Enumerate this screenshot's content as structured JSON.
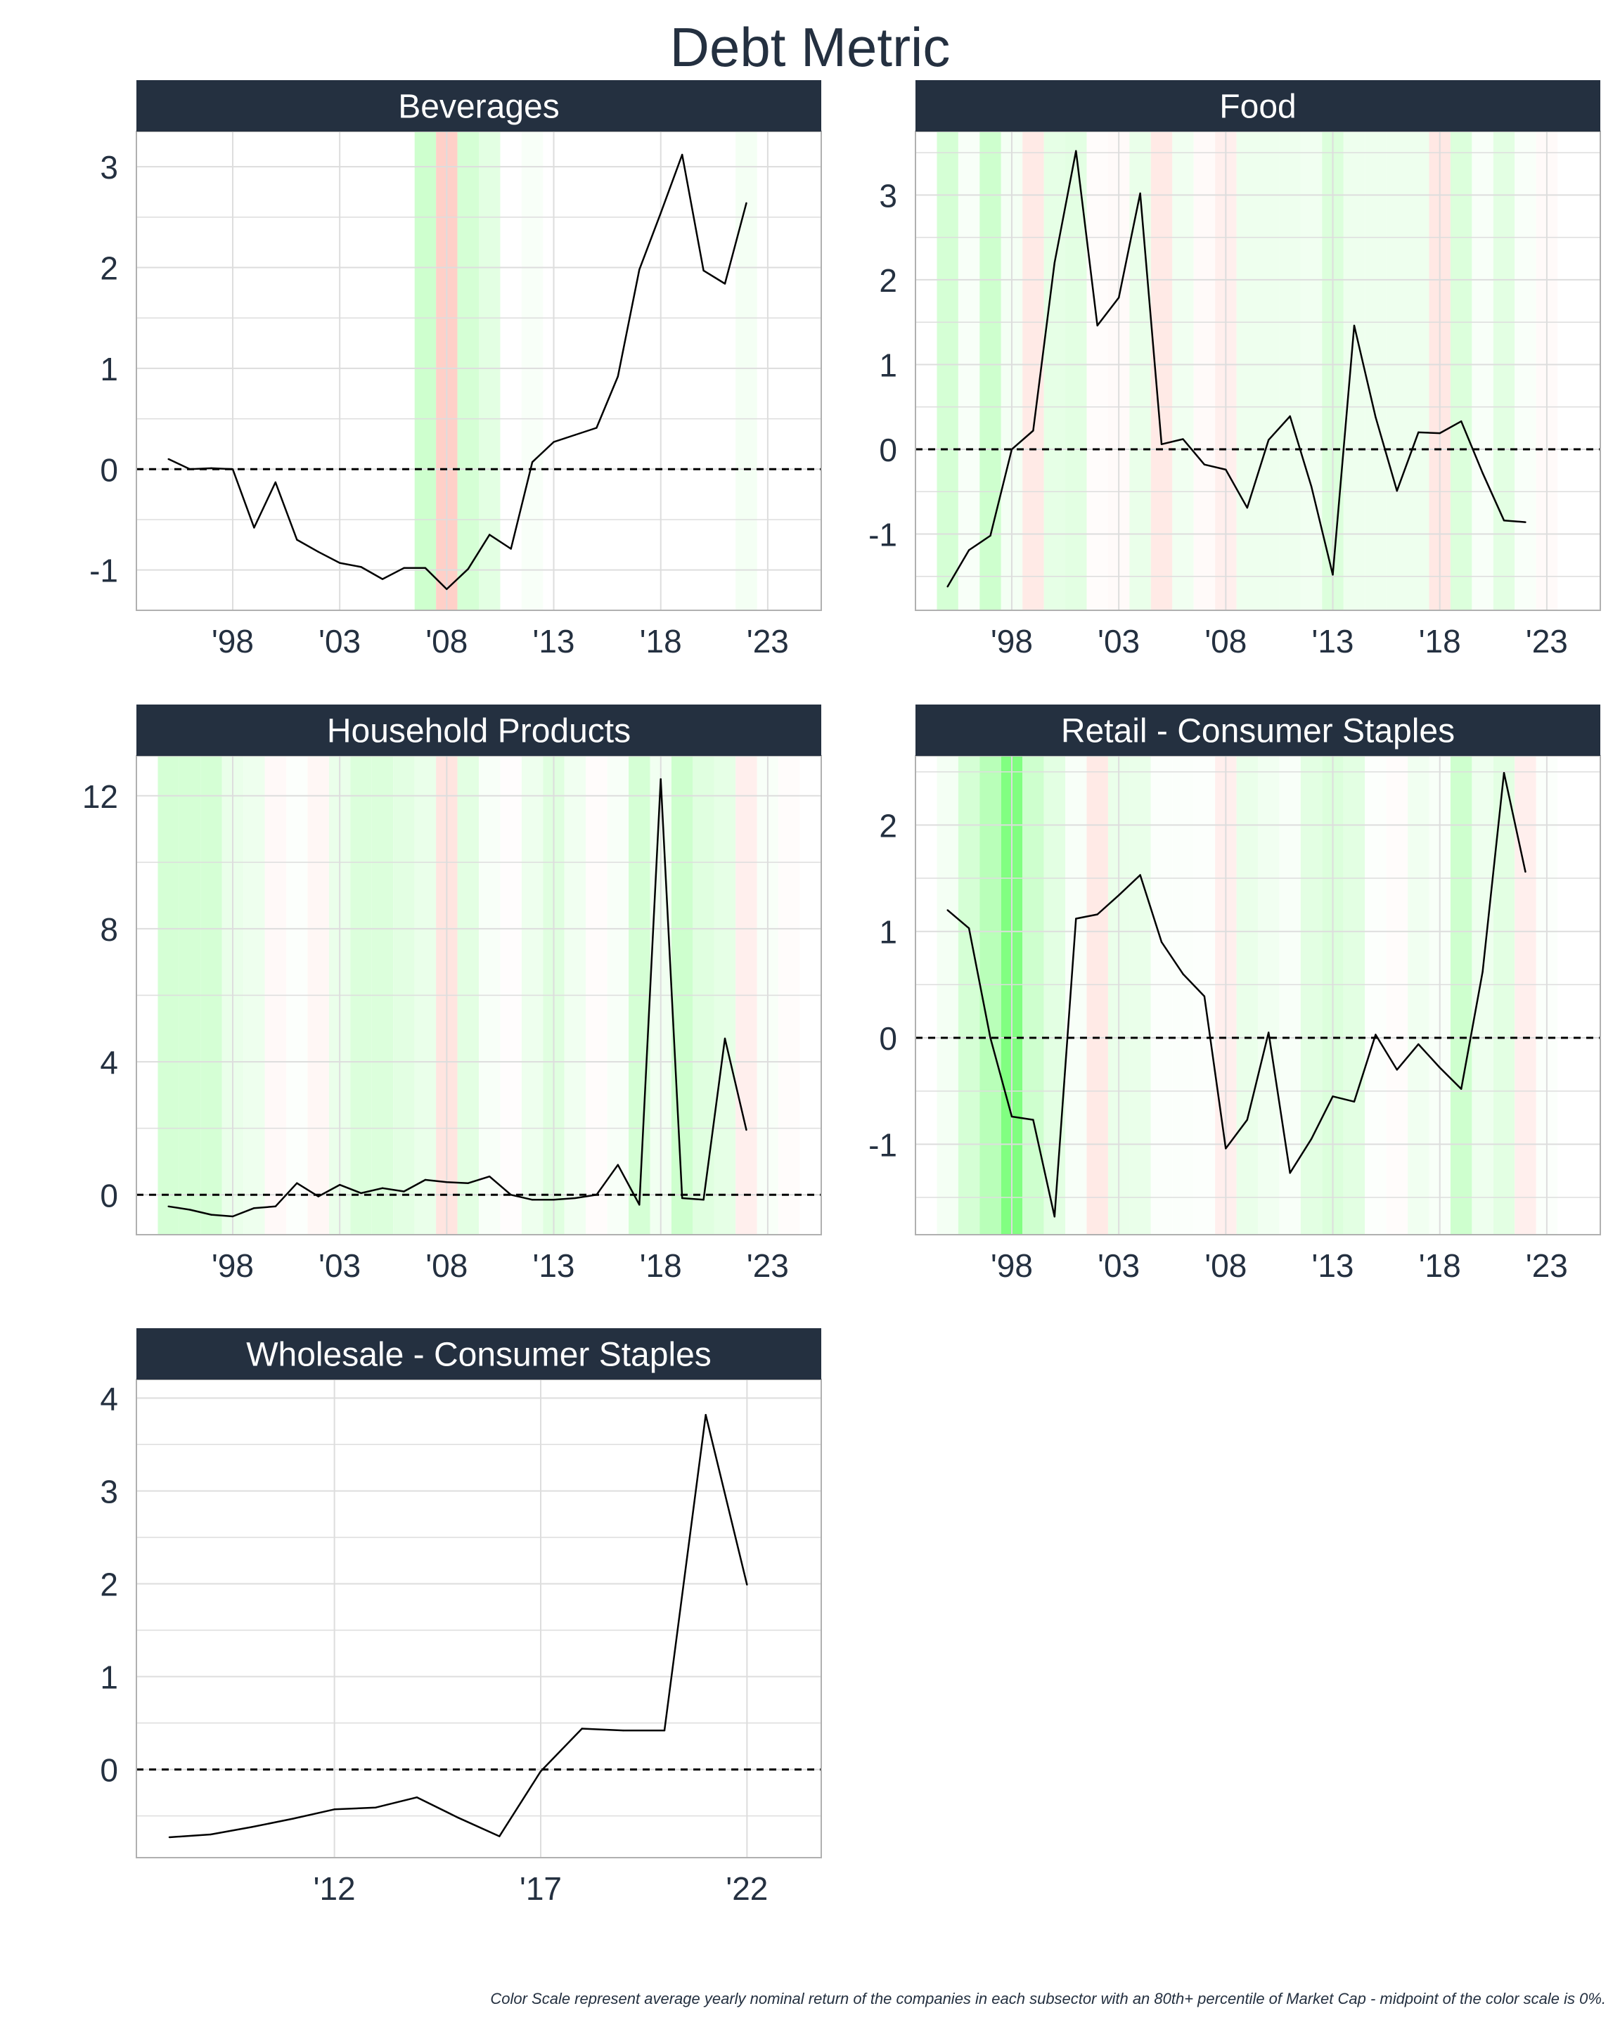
{
  "title": "Debt Metric",
  "footnote": "Color Scale represent average yearly nominal return of the companies in each subsector with an 80th+ percentile of Market Cap - midpoint of the color scale is 0%.",
  "colors": {
    "header_bg": "#243040",
    "header_text": "#ffffff",
    "line": "#000000",
    "grid": "#dddddd",
    "positive_return": "#00ff00",
    "negative_return": "#ff4020"
  },
  "chart_data": [
    {
      "type": "line",
      "title": "Beverages",
      "xlim": [
        1993.5,
        2025.5
      ],
      "ylim": [
        -1.4,
        3.35
      ],
      "xticks": [
        1998,
        2003,
        2008,
        2013,
        2018,
        2023
      ],
      "xtick_labels": [
        "'98",
        "'03",
        "'08",
        "'13",
        "'18",
        "'23"
      ],
      "yticks": [
        -1,
        0,
        1,
        2,
        3
      ],
      "ytick_labels": [
        "-1",
        "0",
        "1",
        "2",
        "3"
      ],
      "reference_line": 0,
      "grid": true,
      "x": [
        1995,
        1996,
        1997,
        1998,
        1999,
        2000,
        2001,
        2002,
        2003,
        2004,
        2005,
        2006,
        2007,
        2008,
        2009,
        2010,
        2011,
        2012,
        2013,
        2014,
        2015,
        2016,
        2017,
        2018,
        2019,
        2020,
        2021,
        2022
      ],
      "y": [
        0.1,
        0.0,
        0.01,
        0.0,
        -0.58,
        -0.13,
        -0.7,
        -0.82,
        -0.93,
        -0.97,
        -1.09,
        -0.98,
        -0.98,
        -1.19,
        -0.99,
        -0.65,
        -0.79,
        0.07,
        0.27,
        0.34,
        0.41,
        0.92,
        1.98,
        2.54,
        3.12,
        1.97,
        1.84,
        2.64
      ],
      "return_bands": [
        {
          "year": 2007,
          "value": 0.35
        },
        {
          "year": 2008,
          "value": -0.45
        },
        {
          "year": 2009,
          "value": 0.3
        },
        {
          "year": 2010,
          "value": 0.2
        },
        {
          "year": 2012,
          "value": 0.05
        },
        {
          "year": 2022,
          "value": 0.08
        }
      ]
    },
    {
      "type": "line",
      "title": "Food",
      "xlim": [
        1993.5,
        2025.5
      ],
      "ylim": [
        -1.9,
        3.75
      ],
      "xticks": [
        1998,
        2003,
        2008,
        2013,
        2018,
        2023
      ],
      "xtick_labels": [
        "'98",
        "'03",
        "'08",
        "'13",
        "'18",
        "'23"
      ],
      "yticks": [
        -1,
        0,
        1,
        2,
        3
      ],
      "ytick_labels": [
        "-1",
        "0",
        "1",
        "2",
        "3"
      ],
      "reference_line": 0,
      "grid": true,
      "x": [
        1995,
        1996,
        1997,
        1998,
        1999,
        2000,
        2001,
        2002,
        2003,
        2004,
        2005,
        2006,
        2007,
        2008,
        2009,
        2010,
        2011,
        2012,
        2013,
        2014,
        2015,
        2016,
        2017,
        2018,
        2019,
        2020,
        2021,
        2022
      ],
      "y": [
        -1.62,
        -1.19,
        -1.02,
        0.0,
        0.22,
        2.2,
        3.52,
        1.46,
        1.79,
        3.02,
        0.06,
        0.12,
        -0.18,
        -0.24,
        -0.69,
        0.11,
        0.39,
        -0.44,
        -1.48,
        1.46,
        0.38,
        -0.49,
        0.2,
        0.19,
        0.33,
        -0.28,
        -0.84,
        -0.86
      ],
      "return_bands": [
        {
          "year": 1995,
          "value": 0.3
        },
        {
          "year": 1996,
          "value": 0.05
        },
        {
          "year": 1997,
          "value": 0.35
        },
        {
          "year": 1998,
          "value": 0.08
        },
        {
          "year": 1999,
          "value": -0.2
        },
        {
          "year": 2000,
          "value": 0.18
        },
        {
          "year": 2001,
          "value": 0.2
        },
        {
          "year": 2002,
          "value": -0.03
        },
        {
          "year": 2003,
          "value": -0.05
        },
        {
          "year": 2004,
          "value": 0.15
        },
        {
          "year": 2005,
          "value": -0.2
        },
        {
          "year": 2006,
          "value": 0.1
        },
        {
          "year": 2007,
          "value": -0.05
        },
        {
          "year": 2008,
          "value": -0.15
        },
        {
          "year": 2009,
          "value": 0.12
        },
        {
          "year": 2010,
          "value": 0.12
        },
        {
          "year": 2011,
          "value": 0.12
        },
        {
          "year": 2012,
          "value": 0.1
        },
        {
          "year": 2013,
          "value": 0.25
        },
        {
          "year": 2014,
          "value": 0.12
        },
        {
          "year": 2015,
          "value": 0.12
        },
        {
          "year": 2016,
          "value": 0.12
        },
        {
          "year": 2017,
          "value": 0.12
        },
        {
          "year": 2018,
          "value": -0.22
        },
        {
          "year": 2019,
          "value": 0.25
        },
        {
          "year": 2020,
          "value": 0.05
        },
        {
          "year": 2021,
          "value": 0.2
        },
        {
          "year": 2022,
          "value": 0.04
        },
        {
          "year": 2023,
          "value": -0.05
        }
      ]
    },
    {
      "type": "line",
      "title": "Household Products",
      "xlim": [
        1993.5,
        2025.5
      ],
      "ylim": [
        -1.2,
        13.2
      ],
      "xticks": [
        1998,
        2003,
        2008,
        2013,
        2018,
        2023
      ],
      "xtick_labels": [
        "'98",
        "'03",
        "'08",
        "'13",
        "'18",
        "'23"
      ],
      "yticks": [
        0,
        4,
        8,
        12
      ],
      "ytick_labels": [
        "0",
        "4",
        "8",
        "12"
      ],
      "reference_line": 0,
      "grid": true,
      "x": [
        1995,
        1996,
        1997,
        1998,
        1999,
        2000,
        2001,
        2002,
        2003,
        2004,
        2005,
        2006,
        2007,
        2008,
        2009,
        2010,
        2011,
        2012,
        2013,
        2014,
        2015,
        2016,
        2017,
        2018,
        2019,
        2020,
        2021,
        2022
      ],
      "y": [
        -0.35,
        -0.45,
        -0.6,
        -0.65,
        -0.4,
        -0.35,
        0.35,
        -0.05,
        0.3,
        0.05,
        0.2,
        0.1,
        0.45,
        0.38,
        0.35,
        0.55,
        0.0,
        -0.15,
        -0.15,
        -0.1,
        0.0,
        0.9,
        -0.3,
        12.5,
        -0.1,
        -0.15,
        4.7,
        1.95
      ],
      "return_bands": [
        {
          "year": 1995,
          "value": 0.3
        },
        {
          "year": 1996,
          "value": 0.3
        },
        {
          "year": 1997,
          "value": 0.3
        },
        {
          "year": 1998,
          "value": 0.15
        },
        {
          "year": 1999,
          "value": 0.12
        },
        {
          "year": 2000,
          "value": -0.06
        },
        {
          "year": 2001,
          "value": 0.02
        },
        {
          "year": 2002,
          "value": -0.08
        },
        {
          "year": 2003,
          "value": 0.15
        },
        {
          "year": 2004,
          "value": 0.25
        },
        {
          "year": 2005,
          "value": 0.25
        },
        {
          "year": 2006,
          "value": 0.2
        },
        {
          "year": 2007,
          "value": 0.15
        },
        {
          "year": 2008,
          "value": -0.25
        },
        {
          "year": 2009,
          "value": 0.2
        },
        {
          "year": 2010,
          "value": 0.05
        },
        {
          "year": 2011,
          "value": -0.02
        },
        {
          "year": 2012,
          "value": 0.12
        },
        {
          "year": 2013,
          "value": 0.22
        },
        {
          "year": 2014,
          "value": 0.1
        },
        {
          "year": 2015,
          "value": -0.03
        },
        {
          "year": 2016,
          "value": 0.05
        },
        {
          "year": 2017,
          "value": 0.3
        },
        {
          "year": 2018,
          "value": 0.1
        },
        {
          "year": 2019,
          "value": 0.35
        },
        {
          "year": 2020,
          "value": 0.22
        },
        {
          "year": 2021,
          "value": 0.18
        },
        {
          "year": 2022,
          "value": -0.15
        },
        {
          "year": 2023,
          "value": 0.05
        },
        {
          "year": 2024,
          "value": -0.03
        }
      ]
    },
    {
      "type": "line",
      "title": "Retail - Consumer Staples",
      "xlim": [
        1993.5,
        2025.5
      ],
      "ylim": [
        -1.85,
        2.65
      ],
      "xticks": [
        1998,
        2003,
        2008,
        2013,
        2018,
        2023
      ],
      "xtick_labels": [
        "'98",
        "'03",
        "'08",
        "'13",
        "'18",
        "'23"
      ],
      "yticks": [
        -1,
        0,
        1,
        2
      ],
      "ytick_labels": [
        "-1",
        "0",
        "1",
        "2"
      ],
      "reference_line": 0,
      "grid": true,
      "x": [
        1995,
        1996,
        1997,
        1998,
        1999,
        2000,
        2001,
        2002,
        2003,
        2004,
        2005,
        2006,
        2007,
        2008,
        2009,
        2010,
        2011,
        2012,
        2013,
        2014,
        2015,
        2016,
        2017,
        2018,
        2019,
        2020,
        2021,
        2022
      ],
      "y": [
        1.2,
        1.03,
        0.0,
        -0.74,
        -0.77,
        -1.68,
        1.12,
        1.16,
        1.34,
        1.53,
        0.9,
        0.6,
        0.39,
        -1.04,
        -0.77,
        0.05,
        -1.27,
        -0.95,
        -0.55,
        -0.6,
        0.03,
        -0.3,
        -0.06,
        -0.28,
        -0.48,
        0.62,
        2.49,
        1.56
      ],
      "return_bands": [
        {
          "year": 1995,
          "value": 0.08
        },
        {
          "year": 1996,
          "value": 0.3
        },
        {
          "year": 1997,
          "value": 0.5
        },
        {
          "year": 1998,
          "value": 0.9
        },
        {
          "year": 1999,
          "value": 0.35
        },
        {
          "year": 2000,
          "value": 0.2
        },
        {
          "year": 2001,
          "value": 0.05
        },
        {
          "year": 2002,
          "value": -0.2
        },
        {
          "year": 2003,
          "value": 0.15
        },
        {
          "year": 2004,
          "value": 0.15
        },
        {
          "year": 2005,
          "value": 0.03
        },
        {
          "year": 2006,
          "value": 0.03
        },
        {
          "year": 2007,
          "value": 0.02
        },
        {
          "year": 2008,
          "value": -0.15
        },
        {
          "year": 2009,
          "value": 0.15
        },
        {
          "year": 2010,
          "value": 0.1
        },
        {
          "year": 2011,
          "value": 0.05
        },
        {
          "year": 2012,
          "value": 0.2
        },
        {
          "year": 2013,
          "value": 0.25
        },
        {
          "year": 2014,
          "value": 0.2
        },
        {
          "year": 2015,
          "value": 0.02
        },
        {
          "year": 2016,
          "value": -0.03
        },
        {
          "year": 2017,
          "value": 0.1
        },
        {
          "year": 2018,
          "value": 0.05
        },
        {
          "year": 2019,
          "value": 0.35
        },
        {
          "year": 2020,
          "value": 0.12
        },
        {
          "year": 2021,
          "value": 0.2
        },
        {
          "year": 2022,
          "value": -0.15
        },
        {
          "year": 2023,
          "value": 0.03
        }
      ]
    },
    {
      "type": "line",
      "title": "Wholesale - Consumer Staples",
      "xlim": [
        2007.2,
        2023.8
      ],
      "ylim": [
        -0.95,
        4.2
      ],
      "xticks": [
        2012,
        2017,
        2022
      ],
      "xtick_labels": [
        "'12",
        "'17",
        "'22"
      ],
      "yticks": [
        0,
        1,
        2,
        3,
        4
      ],
      "ytick_labels": [
        "0",
        "1",
        "2",
        "3",
        "4"
      ],
      "reference_line": 0,
      "grid": true,
      "x": [
        2008,
        2009,
        2010,
        2011,
        2012,
        2013,
        2014,
        2015,
        2016,
        2017,
        2018,
        2019,
        2020,
        2021,
        2022
      ],
      "y": [
        -0.73,
        -0.7,
        -0.62,
        -0.53,
        -0.43,
        -0.41,
        -0.3,
        -0.52,
        -0.72,
        -0.02,
        0.44,
        0.42,
        0.42,
        3.82,
        1.99
      ],
      "return_bands": []
    }
  ]
}
